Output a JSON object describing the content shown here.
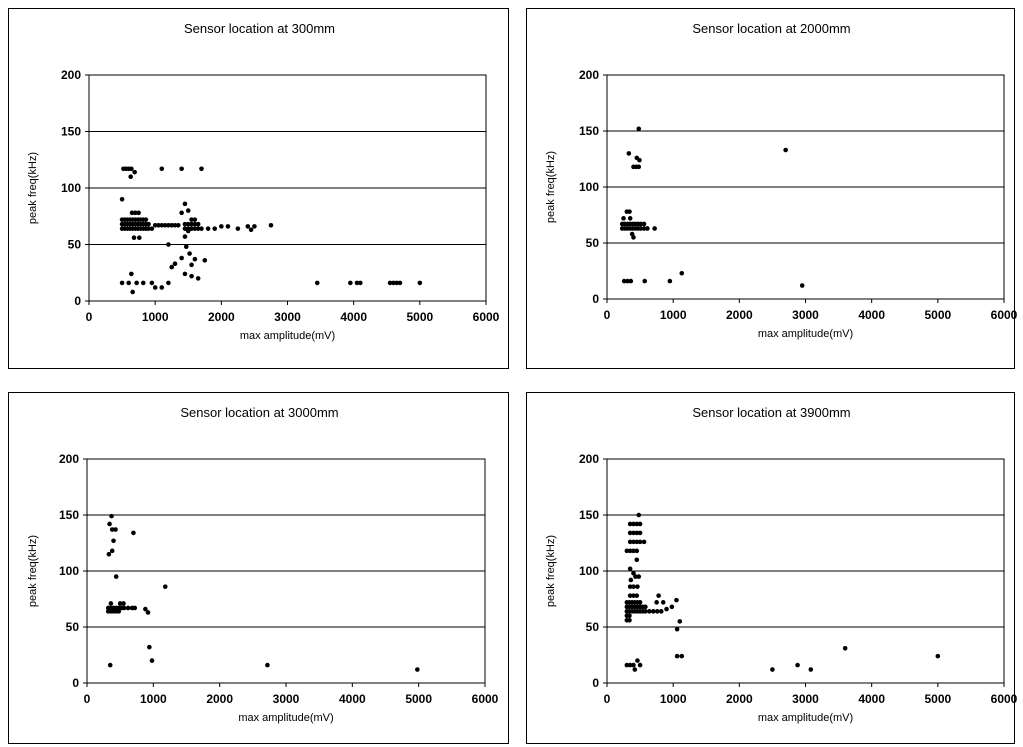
{
  "chart_data": [
    {
      "type": "scatter",
      "title": "Sensor location at 300mm",
      "xlabel": "max amplitude(mV)",
      "ylabel": "peak freq(kHz)",
      "xlim": [
        0,
        6000
      ],
      "ylim": [
        0,
        200
      ],
      "xticks": [
        "0",
        "1000",
        "2000",
        "3000",
        "4000",
        "5000",
        "6000"
      ],
      "yticks": [
        "0",
        "50",
        "100",
        "150",
        "200"
      ],
      "grid": "horizontal",
      "points": [
        [
          520,
          117
        ],
        [
          560,
          117
        ],
        [
          600,
          117
        ],
        [
          640,
          117
        ],
        [
          690,
          114
        ],
        [
          630,
          110
        ],
        [
          500,
          90
        ],
        [
          500,
          72
        ],
        [
          540,
          72
        ],
        [
          580,
          72
        ],
        [
          620,
          72
        ],
        [
          660,
          72
        ],
        [
          700,
          72
        ],
        [
          740,
          72
        ],
        [
          780,
          72
        ],
        [
          820,
          72
        ],
        [
          860,
          72
        ],
        [
          500,
          68
        ],
        [
          540,
          68
        ],
        [
          580,
          68
        ],
        [
          620,
          68
        ],
        [
          660,
          68
        ],
        [
          700,
          68
        ],
        [
          740,
          68
        ],
        [
          780,
          68
        ],
        [
          820,
          68
        ],
        [
          860,
          68
        ],
        [
          900,
          68
        ],
        [
          500,
          64
        ],
        [
          540,
          64
        ],
        [
          580,
          64
        ],
        [
          620,
          64
        ],
        [
          660,
          64
        ],
        [
          700,
          64
        ],
        [
          740,
          64
        ],
        [
          780,
          64
        ],
        [
          820,
          64
        ],
        [
          860,
          64
        ],
        [
          900,
          64
        ],
        [
          950,
          64
        ],
        [
          650,
          78
        ],
        [
          700,
          78
        ],
        [
          750,
          78
        ],
        [
          680,
          56
        ],
        [
          760,
          56
        ],
        [
          1000,
          67
        ],
        [
          1050,
          67
        ],
        [
          1100,
          67
        ],
        [
          1150,
          67
        ],
        [
          1200,
          67
        ],
        [
          1250,
          67
        ],
        [
          1300,
          67
        ],
        [
          1350,
          67
        ],
        [
          1100,
          117
        ],
        [
          1400,
          117
        ],
        [
          1700,
          117
        ],
        [
          1450,
          86
        ],
        [
          1500,
          80
        ],
        [
          1400,
          78
        ],
        [
          1550,
          72
        ],
        [
          1600,
          72
        ],
        [
          1500,
          62
        ],
        [
          1450,
          57
        ],
        [
          1450,
          68
        ],
        [
          1500,
          68
        ],
        [
          1550,
          68
        ],
        [
          1600,
          68
        ],
        [
          1650,
          68
        ],
        [
          1450,
          64
        ],
        [
          1500,
          64
        ],
        [
          1550,
          64
        ],
        [
          1600,
          64
        ],
        [
          1650,
          64
        ],
        [
          1700,
          64
        ],
        [
          1800,
          64
        ],
        [
          1900,
          64
        ],
        [
          1200,
          50
        ],
        [
          1470,
          48
        ],
        [
          1520,
          42
        ],
        [
          1400,
          38
        ],
        [
          1300,
          33
        ],
        [
          1250,
          30
        ],
        [
          1550,
          32
        ],
        [
          1600,
          37
        ],
        [
          1750,
          36
        ],
        [
          1450,
          24
        ],
        [
          1550,
          22
        ],
        [
          1650,
          20
        ],
        [
          2000,
          66
        ],
        [
          2100,
          66
        ],
        [
          2250,
          64
        ],
        [
          2400,
          66
        ],
        [
          2450,
          63
        ],
        [
          2500,
          66
        ],
        [
          2750,
          67
        ],
        [
          500,
          16
        ],
        [
          600,
          16
        ],
        [
          720,
          16
        ],
        [
          820,
          16
        ],
        [
          950,
          16
        ],
        [
          1000,
          12
        ],
        [
          1100,
          12
        ],
        [
          1200,
          16
        ],
        [
          640,
          24
        ],
        [
          660,
          8
        ],
        [
          3450,
          16
        ],
        [
          3950,
          16
        ],
        [
          4050,
          16
        ],
        [
          4100,
          16
        ],
        [
          4550,
          16
        ],
        [
          4600,
          16
        ],
        [
          4650,
          16
        ],
        [
          4700,
          16
        ],
        [
          5000,
          16
        ]
      ]
    },
    {
      "type": "scatter",
      "title": "Sensor location at 2000mm",
      "xlabel": "max amplitude(mV)",
      "ylabel": "peak freq(kHz)",
      "xlim": [
        0,
        6000
      ],
      "ylim": [
        0,
        200
      ],
      "xticks": [
        "0",
        "1000",
        "2000",
        "3000",
        "4000",
        "5000",
        "6000"
      ],
      "yticks": [
        "0",
        "50",
        "100",
        "150",
        "200"
      ],
      "grid": "horizontal",
      "points": [
        [
          480,
          152
        ],
        [
          330,
          130
        ],
        [
          450,
          126
        ],
        [
          490,
          124
        ],
        [
          400,
          118
        ],
        [
          440,
          118
        ],
        [
          480,
          118
        ],
        [
          300,
          78
        ],
        [
          340,
          78
        ],
        [
          250,
          72
        ],
        [
          350,
          72
        ],
        [
          230,
          67
        ],
        [
          270,
          67
        ],
        [
          310,
          67
        ],
        [
          350,
          67
        ],
        [
          390,
          67
        ],
        [
          430,
          67
        ],
        [
          470,
          67
        ],
        [
          510,
          67
        ],
        [
          560,
          67
        ],
        [
          230,
          63
        ],
        [
          270,
          63
        ],
        [
          310,
          63
        ],
        [
          350,
          63
        ],
        [
          390,
          63
        ],
        [
          430,
          63
        ],
        [
          470,
          63
        ],
        [
          510,
          63
        ],
        [
          560,
          63
        ],
        [
          610,
          63
        ],
        [
          720,
          63
        ],
        [
          380,
          58
        ],
        [
          400,
          55
        ],
        [
          260,
          16
        ],
        [
          310,
          16
        ],
        [
          360,
          16
        ],
        [
          570,
          16
        ],
        [
          950,
          16
        ],
        [
          1130,
          23
        ],
        [
          2950,
          12
        ],
        [
          2700,
          133
        ]
      ]
    },
    {
      "type": "scatter",
      "title": "Sensor location at 3000mm",
      "xlabel": "max amplitude(mV)",
      "ylabel": "peak freq(kHz)",
      "xlim": [
        0,
        6000
      ],
      "ylim": [
        0,
        200
      ],
      "xticks": [
        "0",
        "1000",
        "2000",
        "3000",
        "4000",
        "5000",
        "6000"
      ],
      "yticks": [
        "0",
        "50",
        "100",
        "150",
        "200"
      ],
      "grid": "horizontal",
      "points": [
        [
          370,
          149
        ],
        [
          340,
          142
        ],
        [
          380,
          137
        ],
        [
          430,
          137
        ],
        [
          400,
          127
        ],
        [
          330,
          115
        ],
        [
          380,
          118
        ],
        [
          700,
          134
        ],
        [
          440,
          95
        ],
        [
          360,
          71
        ],
        [
          500,
          71
        ],
        [
          550,
          71
        ],
        [
          320,
          67
        ],
        [
          360,
          67
        ],
        [
          400,
          67
        ],
        [
          440,
          67
        ],
        [
          480,
          67
        ],
        [
          520,
          67
        ],
        [
          560,
          67
        ],
        [
          620,
          67
        ],
        [
          680,
          67
        ],
        [
          720,
          67
        ],
        [
          320,
          64
        ],
        [
          360,
          64
        ],
        [
          400,
          64
        ],
        [
          440,
          64
        ],
        [
          480,
          64
        ],
        [
          880,
          66
        ],
        [
          920,
          63
        ],
        [
          1180,
          86
        ],
        [
          940,
          32
        ],
        [
          980,
          20
        ],
        [
          350,
          16
        ],
        [
          2720,
          16
        ],
        [
          4980,
          12
        ]
      ]
    },
    {
      "type": "scatter",
      "title": "Sensor location at 3900mm",
      "xlabel": "max amplitude(mV)",
      "ylabel": "peak freq(kHz)",
      "xlim": [
        0,
        6000
      ],
      "ylim": [
        0,
        200
      ],
      "xticks": [
        "0",
        "1000",
        "2000",
        "3000",
        "4000",
        "5000",
        "6000"
      ],
      "yticks": [
        "0",
        "50",
        "100",
        "150",
        "200"
      ],
      "grid": "horizontal",
      "points": [
        [
          480,
          150
        ],
        [
          350,
          142
        ],
        [
          400,
          142
        ],
        [
          450,
          142
        ],
        [
          500,
          142
        ],
        [
          350,
          134
        ],
        [
          400,
          134
        ],
        [
          450,
          134
        ],
        [
          500,
          134
        ],
        [
          350,
          126
        ],
        [
          400,
          126
        ],
        [
          450,
          126
        ],
        [
          500,
          126
        ],
        [
          560,
          126
        ],
        [
          300,
          118
        ],
        [
          350,
          118
        ],
        [
          400,
          118
        ],
        [
          450,
          118
        ],
        [
          450,
          110
        ],
        [
          350,
          102
        ],
        [
          400,
          98
        ],
        [
          430,
          95
        ],
        [
          480,
          95
        ],
        [
          360,
          92
        ],
        [
          350,
          86
        ],
        [
          400,
          86
        ],
        [
          460,
          86
        ],
        [
          350,
          78
        ],
        [
          400,
          78
        ],
        [
          450,
          78
        ],
        [
          300,
          72
        ],
        [
          340,
          72
        ],
        [
          380,
          72
        ],
        [
          420,
          72
        ],
        [
          460,
          72
        ],
        [
          500,
          72
        ],
        [
          300,
          68
        ],
        [
          340,
          68
        ],
        [
          380,
          68
        ],
        [
          420,
          68
        ],
        [
          460,
          68
        ],
        [
          500,
          68
        ],
        [
          540,
          68
        ],
        [
          580,
          68
        ],
        [
          300,
          64
        ],
        [
          340,
          64
        ],
        [
          380,
          64
        ],
        [
          420,
          64
        ],
        [
          460,
          64
        ],
        [
          500,
          64
        ],
        [
          540,
          64
        ],
        [
          580,
          64
        ],
        [
          640,
          64
        ],
        [
          700,
          64
        ],
        [
          760,
          64
        ],
        [
          820,
          64
        ],
        [
          300,
          60
        ],
        [
          340,
          60
        ],
        [
          300,
          56
        ],
        [
          340,
          56
        ],
        [
          780,
          78
        ],
        [
          850,
          72
        ],
        [
          900,
          66
        ],
        [
          980,
          68
        ],
        [
          750,
          72
        ],
        [
          1050,
          74
        ],
        [
          1100,
          55
        ],
        [
          1060,
          48
        ],
        [
          300,
          16
        ],
        [
          350,
          16
        ],
        [
          400,
          16
        ],
        [
          420,
          12
        ],
        [
          460,
          20
        ],
        [
          500,
          16
        ],
        [
          1060,
          24
        ],
        [
          1130,
          24
        ],
        [
          2500,
          12
        ],
        [
          2880,
          16
        ],
        [
          3080,
          12
        ],
        [
          3600,
          31
        ],
        [
          5000,
          24
        ]
      ]
    }
  ]
}
